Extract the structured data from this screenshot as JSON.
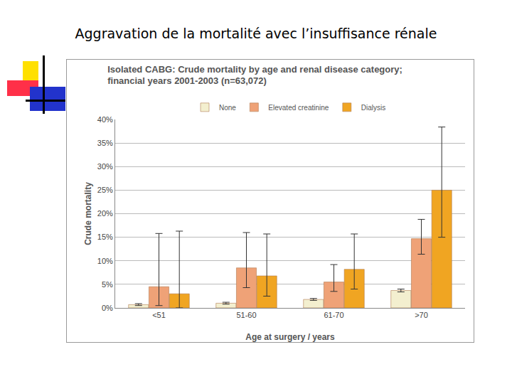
{
  "slide_title": "Aggravation de la mortalité avec l’insuffisance rénale",
  "chart_data": {
    "type": "bar",
    "title": [
      "Isolated CABG: Crude mortality by age and renal disease category;",
      "financial years 2001-2003 (n=63,072)"
    ],
    "x_label": "Age at surgery / years",
    "y_label": "Crude mortality",
    "categories": [
      "<51",
      "51-60",
      "61-70",
      ">70"
    ],
    "series": [
      {
        "name": "None",
        "color": "#f3efcf",
        "values": [
          0.7,
          1.0,
          1.8,
          3.7
        ],
        "error_plus": [
          0.2,
          0.2,
          0.2,
          0.3
        ],
        "error_minus": [
          0.2,
          0.2,
          0.2,
          0.3
        ]
      },
      {
        "name": "Elevated creatinine",
        "color": "#efa277",
        "values": [
          4.5,
          8.5,
          5.5,
          14.7
        ],
        "error_plus": [
          11.3,
          7.5,
          3.7,
          4.1
        ],
        "error_minus": [
          4.0,
          4.2,
          2.0,
          3.3
        ]
      },
      {
        "name": "Dialysis",
        "color": "#f0a522",
        "values": [
          3.0,
          6.8,
          8.2,
          25.0
        ],
        "error_plus": [
          13.3,
          8.9,
          7.5,
          13.4
        ],
        "error_minus": [
          3.0,
          4.3,
          4.2,
          10.0
        ]
      }
    ],
    "ylim": [
      0,
      40
    ],
    "yticks": [
      {
        "value": 0,
        "label": "0%"
      },
      {
        "value": 5,
        "label": "5%"
      },
      {
        "value": 10,
        "label": "10%"
      },
      {
        "value": 15,
        "label": "15%"
      },
      {
        "value": 20,
        "label": "20%"
      },
      {
        "value": 25,
        "label": "25%"
      },
      {
        "value": 30,
        "label": "30%"
      },
      {
        "value": 35,
        "label": "35%"
      },
      {
        "value": 40,
        "label": "40%"
      }
    ],
    "grid": true,
    "legend": "top"
  }
}
